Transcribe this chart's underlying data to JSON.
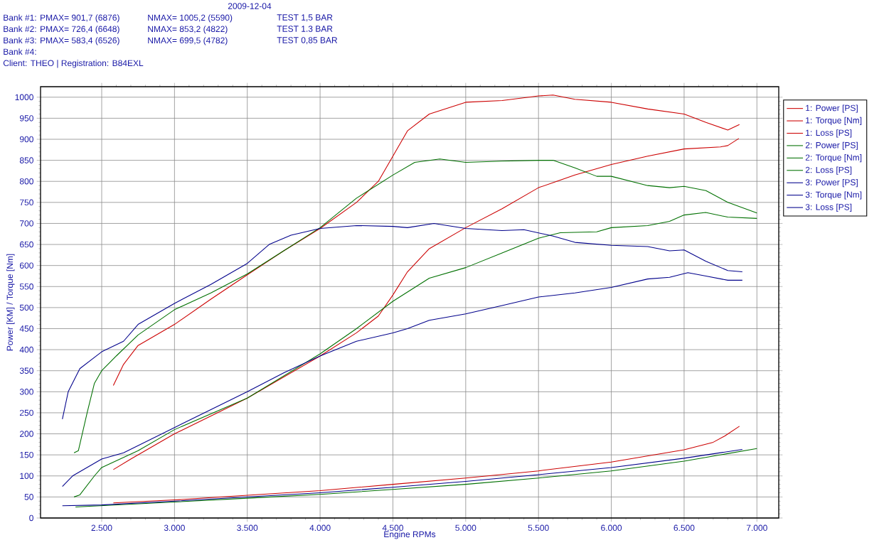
{
  "chart_data": {
    "type": "line",
    "xlabel": "Engine RPMs",
    "ylabel": "Power [KM] / Torque [Nm]",
    "annotations": [
      "2009-12-04",
      "Bank #1: PMAX= 901,7 (6876)",
      "NMAX= 1005,2 (5590)",
      "TEST 1,5 BAR",
      "Bank #2: PMAX= 726,4 (6648)",
      "NMAX= 853,2 (4822)",
      "TEST 1.3 BAR",
      "Bank #3: PMAX= 583,4 (6526)",
      "NMAX= 699,5 (4782)",
      "TEST 0,85 BAR",
      "Bank #4:",
      "Client: THEO | Registration: B84EXL"
    ],
    "xlim": [
      2080,
      7150
    ],
    "ylim": [
      0,
      1025
    ],
    "xticks": [
      {
        "value": 2500,
        "label": "2.500"
      },
      {
        "value": 3000,
        "label": "3.000"
      },
      {
        "value": 3500,
        "label": "3.500"
      },
      {
        "value": 4000,
        "label": "4.000"
      },
      {
        "value": 4500,
        "label": "4.500"
      },
      {
        "value": 5000,
        "label": "5.000"
      },
      {
        "value": 5500,
        "label": "5.500"
      },
      {
        "value": 6000,
        "label": "6.000"
      },
      {
        "value": 6500,
        "label": "6.500"
      },
      {
        "value": 7000,
        "label": "7.000"
      }
    ],
    "yticks": [
      0,
      50,
      100,
      150,
      200,
      250,
      300,
      350,
      400,
      450,
      500,
      550,
      600,
      650,
      700,
      750,
      800,
      850,
      900,
      950,
      1000
    ],
    "grid": true,
    "legend": "right",
    "line_style": "solid",
    "series": [
      {
        "name": "1: Power [PS]",
        "color": "#cc0000",
        "x": [
          2580,
          2700,
          3000,
          3500,
          4000,
          4250,
          4400,
          4500,
          4600,
          4750,
          5000,
          5250,
          5500,
          5750,
          6000,
          6250,
          6500,
          6750,
          6800,
          6876
        ],
        "values": [
          115,
          140,
          200,
          285,
          385,
          440,
          480,
          530,
          585,
          640,
          690,
          735,
          785,
          815,
          840,
          860,
          877,
          882,
          885,
          902
        ]
      },
      {
        "name": "1: Torque [Nm]",
        "color": "#cc0000",
        "x": [
          2580,
          2650,
          2750,
          3000,
          3250,
          3500,
          3750,
          4000,
          4250,
          4400,
          4500,
          4600,
          4750,
          5000,
          5250,
          5500,
          5600,
          5750,
          6000,
          6250,
          6500,
          6650,
          6800,
          6880
        ],
        "values": [
          315,
          365,
          410,
          460,
          520,
          578,
          635,
          688,
          750,
          800,
          860,
          920,
          960,
          988,
          992,
          1003,
          1005,
          995,
          988,
          972,
          960,
          940,
          922,
          935
        ]
      },
      {
        "name": "1: Loss [PS]",
        "color": "#cc0000",
        "x": [
          2580,
          3000,
          3500,
          4000,
          4500,
          5000,
          5500,
          6000,
          6500,
          6700,
          6780,
          6880
        ],
        "values": [
          36,
          43,
          54,
          65,
          80,
          95,
          112,
          133,
          162,
          180,
          195,
          218
        ]
      },
      {
        "name": "2: Power [PS]",
        "color": "#007000",
        "x": [
          2310,
          2350,
          2450,
          2500,
          2750,
          3000,
          3500,
          4000,
          4250,
          4500,
          4750,
          5000,
          5250,
          5500,
          5650,
          5900,
          6000,
          6250,
          6400,
          6500,
          6648,
          6800,
          7000
        ],
        "values": [
          50,
          55,
          100,
          120,
          160,
          210,
          285,
          390,
          450,
          515,
          570,
          595,
          630,
          665,
          678,
          680,
          690,
          695,
          705,
          720,
          726,
          715,
          712
        ]
      },
      {
        "name": "2: Torque [Nm]",
        "color": "#007000",
        "x": [
          2310,
          2340,
          2400,
          2450,
          2500,
          2600,
          2750,
          3000,
          3250,
          3500,
          3750,
          4000,
          4250,
          4500,
          4650,
          4822,
          5000,
          5250,
          5500,
          5600,
          5750,
          5900,
          6000,
          6250,
          6400,
          6500,
          6650,
          6800,
          7000
        ],
        "values": [
          155,
          160,
          250,
          320,
          350,
          385,
          435,
          495,
          535,
          580,
          635,
          690,
          760,
          815,
          845,
          853,
          845,
          848,
          850,
          850,
          832,
          812,
          812,
          790,
          785,
          788,
          778,
          750,
          725
        ]
      },
      {
        "name": "2: Loss [PS]",
        "color": "#007000",
        "x": [
          2320,
          3000,
          3500,
          4000,
          4500,
          5000,
          5500,
          6000,
          6500,
          7000
        ],
        "values": [
          26,
          38,
          47,
          56,
          68,
          80,
          95,
          112,
          135,
          165
        ]
      },
      {
        "name": "3: Power [PS]",
        "color": "#00008b",
        "x": [
          2230,
          2300,
          2500,
          2650,
          3000,
          3500,
          3750,
          4000,
          4250,
          4500,
          4600,
          4750,
          5000,
          5250,
          5500,
          5750,
          6000,
          6250,
          6400,
          6526,
          6650,
          6800,
          6900
        ],
        "values": [
          75,
          100,
          140,
          155,
          215,
          300,
          345,
          385,
          420,
          440,
          450,
          470,
          485,
          505,
          525,
          535,
          548,
          568,
          572,
          583,
          575,
          565,
          565
        ]
      },
      {
        "name": "3: Torque [Nm]",
        "color": "#00008b",
        "x": [
          2230,
          2270,
          2350,
          2500,
          2650,
          2750,
          3000,
          3250,
          3500,
          3650,
          3800,
          4000,
          4250,
          4500,
          4600,
          4782,
          5000,
          5250,
          5400,
          5600,
          5750,
          6000,
          6250,
          6400,
          6500,
          6650,
          6800,
          6900
        ],
        "values": [
          235,
          300,
          355,
          395,
          420,
          460,
          510,
          555,
          605,
          650,
          672,
          688,
          695,
          693,
          690,
          700,
          688,
          683,
          685,
          670,
          655,
          648,
          645,
          635,
          637,
          610,
          588,
          585
        ]
      },
      {
        "name": "3: Loss [PS]",
        "color": "#00008b",
        "x": [
          2230,
          2500,
          3000,
          3500,
          4000,
          4500,
          5000,
          5500,
          6000,
          6500,
          6900
        ],
        "values": [
          29,
          31,
          40,
          50,
          60,
          73,
          87,
          103,
          120,
          142,
          163
        ]
      }
    ]
  }
}
